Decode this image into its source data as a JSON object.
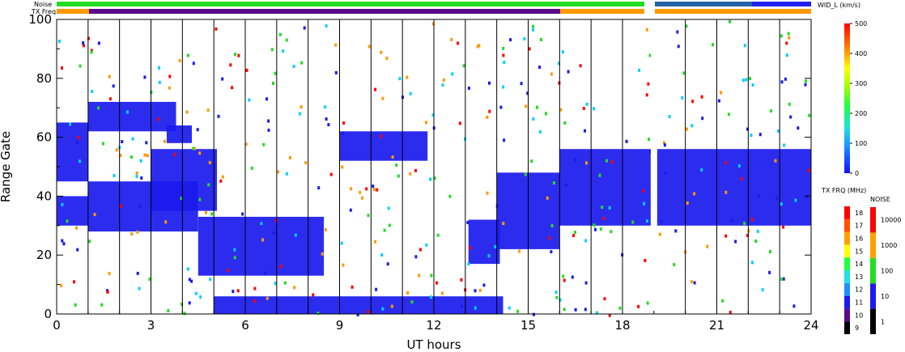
{
  "chart_data": {
    "type": "heatmap",
    "xlabel": "UT hours",
    "ylabel": "Range Gate",
    "x_ticks": [
      "0",
      "3",
      "6",
      "9",
      "12",
      "15",
      "18",
      "21",
      "24"
    ],
    "y_ticks": [
      "0",
      "20",
      "40",
      "60",
      "80",
      "100"
    ],
    "xlim": [
      0,
      24
    ],
    "ylim": [
      0,
      100
    ],
    "top_bars": {
      "noise_label": "Noise",
      "freq_label": "TX Freq"
    },
    "colorbar_width": {
      "title": "WID_L (km/s)",
      "ticks": [
        "0",
        "100",
        "200",
        "300",
        "400",
        "500"
      ],
      "range": [
        0,
        500
      ]
    },
    "colorbar_freq": {
      "title": "TX FRQ (MHz)",
      "ticks": [
        "9",
        "10",
        "11",
        "12",
        "13",
        "14",
        "15",
        "16",
        "17",
        "18"
      ]
    },
    "colorbar_noise": {
      "title": "NOISE",
      "ticks": [
        "1",
        "10",
        "100",
        "1000",
        "10000"
      ]
    },
    "vertical_lines_ut": [
      1,
      2,
      3,
      4,
      5,
      6,
      7,
      8,
      9,
      10,
      11,
      12,
      13,
      14,
      15,
      16,
      17,
      18,
      19,
      20,
      21,
      22,
      23
    ],
    "data_gap_ut": [
      18.9,
      19.1
    ],
    "echo_regions": [
      {
        "ut": [
          0.0,
          1.0
        ],
        "gate": [
          45,
          65
        ],
        "color": "#1a1aee"
      },
      {
        "ut": [
          0.0,
          1.0
        ],
        "gate": [
          30,
          40
        ],
        "color": "#1a1aee"
      },
      {
        "ut": [
          1.0,
          4.5
        ],
        "gate": [
          28,
          45
        ],
        "color": "#1a1aee"
      },
      {
        "ut": [
          3.0,
          5.1
        ],
        "gate": [
          35,
          56
        ],
        "color": "#1a1aee"
      },
      {
        "ut": [
          1.0,
          3.8
        ],
        "gate": [
          62,
          72
        ],
        "color": "#1a1aee"
      },
      {
        "ut": [
          3.5,
          4.3
        ],
        "gate": [
          58,
          64
        ],
        "color": "#1a1aee"
      },
      {
        "ut": [
          4.5,
          8.5
        ],
        "gate": [
          13,
          33
        ],
        "color": "#1a1aee"
      },
      {
        "ut": [
          5.0,
          14.2
        ],
        "gate": [
          0,
          6
        ],
        "color": "#1a1aee"
      },
      {
        "ut": [
          13.1,
          14.1
        ],
        "gate": [
          17,
          32
        ],
        "color": "#1a1aee"
      },
      {
        "ut": [
          14.0,
          16.0
        ],
        "gate": [
          22,
          48
        ],
        "color": "#1a1aee"
      },
      {
        "ut": [
          16.0,
          18.9
        ],
        "gate": [
          30,
          56
        ],
        "color": "#1a1aee"
      },
      {
        "ut": [
          19.1,
          24.0
        ],
        "gate": [
          30,
          56
        ],
        "color": "#1a1aee"
      },
      {
        "ut": [
          9.0,
          11.8
        ],
        "gate": [
          52,
          62
        ],
        "color": "#1a1aee"
      }
    ],
    "colors": {
      "echo_blue": "#1a1aee",
      "noise_green": "#22dd22",
      "freq_orange": "#ff9900",
      "freq_purple": "#5a0a8a",
      "noise_blue": "#2222ee"
    }
  }
}
